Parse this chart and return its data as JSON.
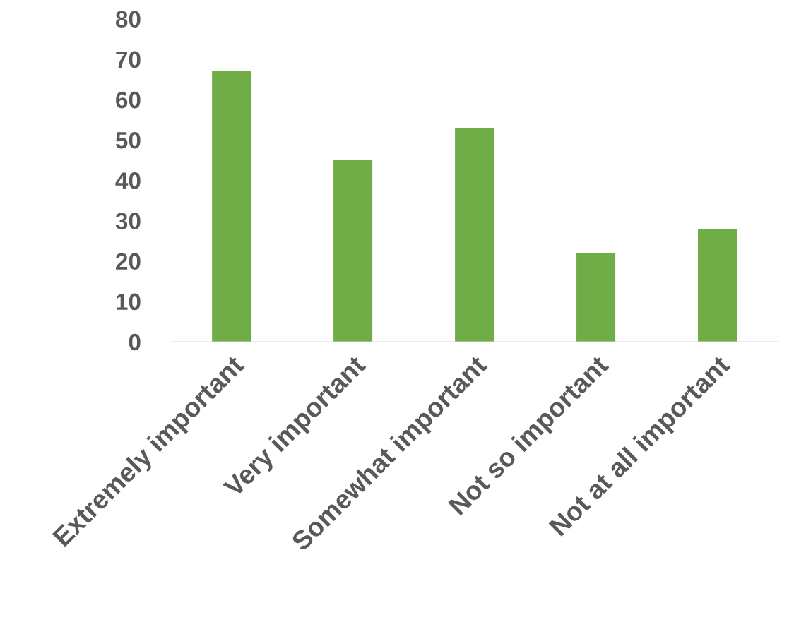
{
  "chart_data": {
    "type": "bar",
    "categories": [
      "Extremely important",
      "Very important",
      "Somewhat important",
      "Not so important",
      "Not at all important"
    ],
    "values": [
      67,
      45,
      53,
      22,
      28
    ],
    "color": "#70ad47",
    "ylim": [
      0,
      80
    ],
    "yticks": [
      0,
      10,
      20,
      30,
      40,
      50,
      60,
      70,
      80
    ],
    "grid": false,
    "legend": false
  }
}
